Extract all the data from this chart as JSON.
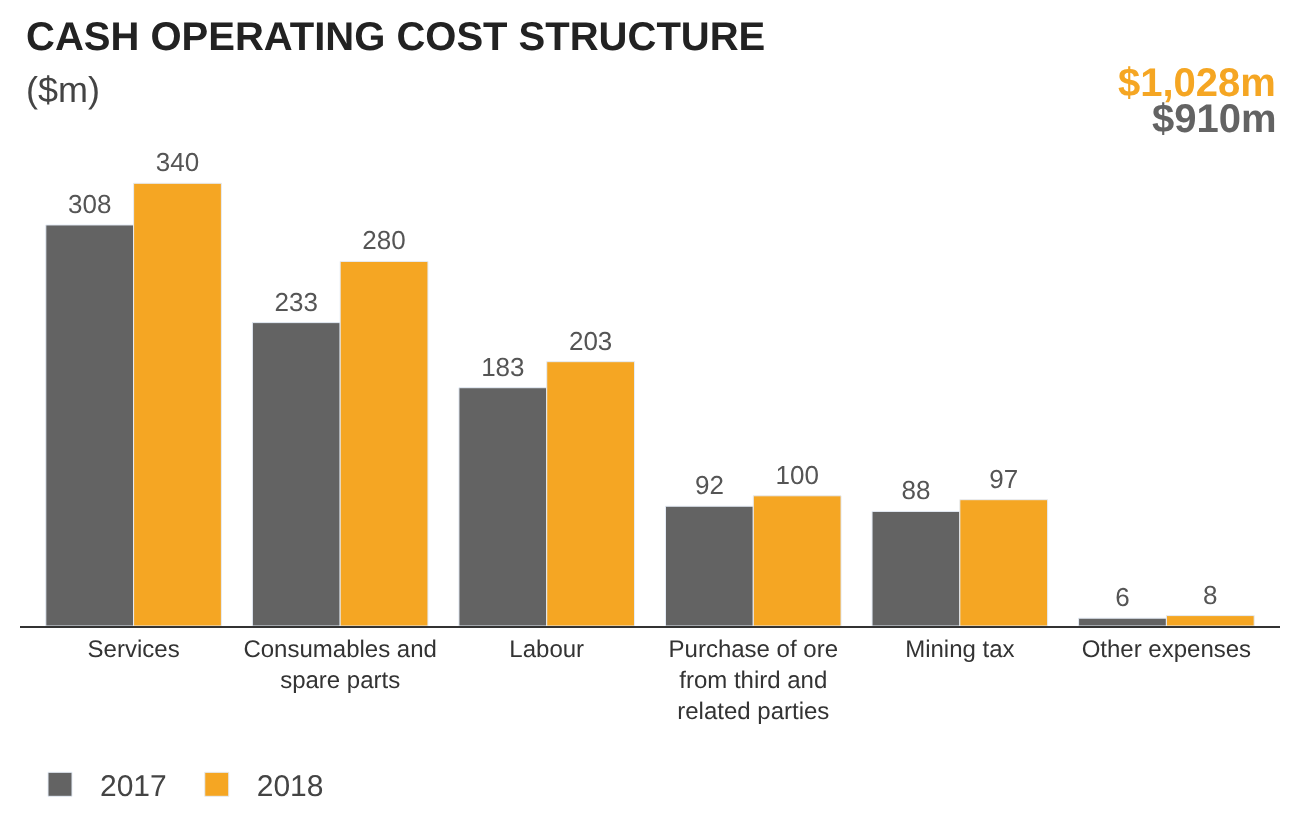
{
  "chart_data": {
    "type": "bar",
    "title": "CASH OPERATING COST STRUCTURE",
    "subtitle": "($m)",
    "categories": [
      "Services",
      "Consumables and spare parts",
      "Labour",
      "Purchase of ore from third and related parties",
      "Mining tax",
      "Other expenses"
    ],
    "series": [
      {
        "name": "2017",
        "color": "#636363",
        "values": [
          308,
          233,
          183,
          92,
          88,
          6
        ]
      },
      {
        "name": "2018",
        "color": "#f5a623",
        "values": [
          340,
          280,
          203,
          100,
          97,
          8
        ]
      }
    ],
    "annotations": [
      "$1,028m",
      "$910m"
    ],
    "data_labels": true,
    "legend": "bottom left"
  }
}
